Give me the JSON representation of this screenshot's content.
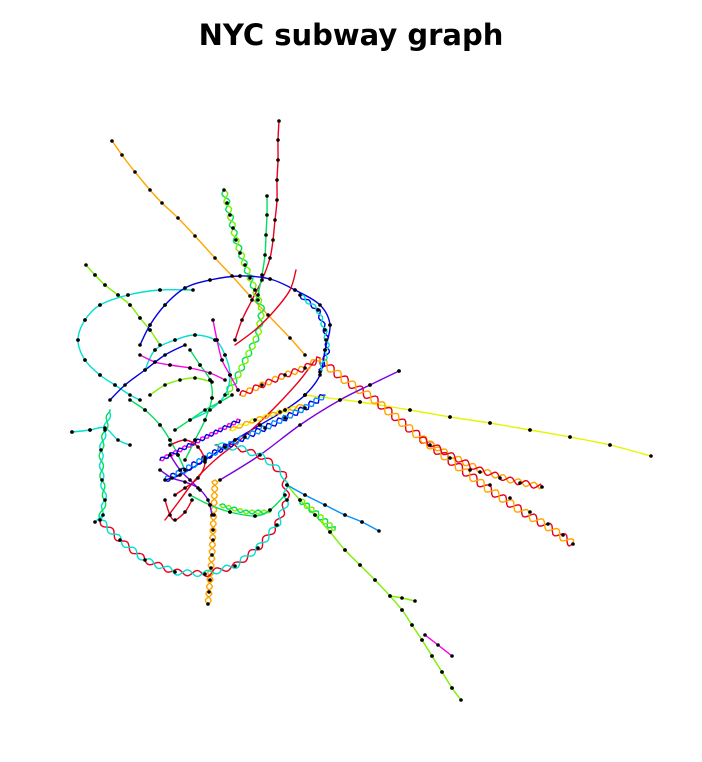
{
  "title": "NYC subway graph",
  "colors": {
    "red": "#e8001c",
    "orange": "#ffa500",
    "yellow": "#e5f500",
    "lime": "#7cf000",
    "green": "#00e05a",
    "cyan": "#00e0d0",
    "sky": "#0090ff",
    "blue": "#0000e0",
    "violet": "#7a00e0",
    "magenta": "#ff00e0",
    "node": "#000000"
  }
}
